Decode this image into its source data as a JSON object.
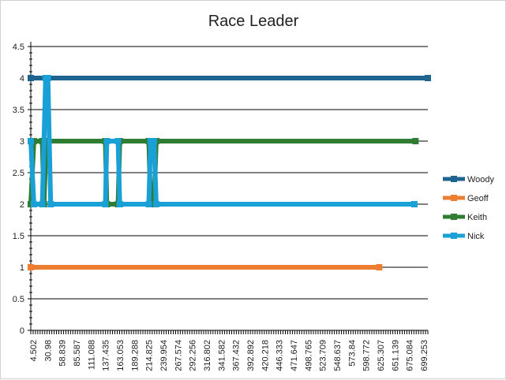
{
  "chart_data": {
    "type": "line",
    "title": "Race Leader",
    "xlabel": "",
    "ylabel": "",
    "ylim": [
      0,
      4.5
    ],
    "y_ticks": [
      "0",
      "0.5",
      "1",
      "1.5",
      "2",
      "2.5",
      "3",
      "3.5",
      "4",
      "4.5"
    ],
    "x_range": [
      4.502,
      712
    ],
    "x_tick_labels": [
      "4.502",
      "30.98",
      "58.839",
      "85.587",
      "111.088",
      "137.435",
      "163.053",
      "189.288",
      "214.825",
      "239.954",
      "267.574",
      "292.256",
      "316.802",
      "341.582",
      "367.432",
      "392.892",
      "420.218",
      "446.333",
      "471.647",
      "498.765",
      "523.709",
      "548.637",
      "573.84",
      "598.772",
      "625.307",
      "651.139",
      "675.084",
      "699.253"
    ],
    "grid": "horizontal",
    "legend_position": "right",
    "series": [
      {
        "name": "Woody",
        "color": "#1f6491",
        "x": [
          4.502,
          712
        ],
        "y": [
          4,
          4
        ]
      },
      {
        "name": "Geoff",
        "color": "#ed7d31",
        "x": [
          4.502,
          625.307
        ],
        "y": [
          1,
          1
        ]
      },
      {
        "name": "Keith",
        "color": "#2e7d32",
        "x": [
          4.502,
          10,
          25,
          28,
          32,
          137.435,
          140,
          160,
          163.053,
          214.825,
          218,
          224,
          228,
          690
        ],
        "y": [
          2,
          3,
          3,
          2,
          3,
          3,
          2,
          2,
          3,
          3,
          2,
          2,
          3,
          3
        ]
      },
      {
        "name": "Nick",
        "color": "#18a0d7",
        "x": [
          4.502,
          10,
          25,
          30.98,
          35,
          40,
          137.435,
          140,
          160,
          163.053,
          214.825,
          218,
          224,
          228,
          688
        ],
        "y": [
          3,
          2,
          2,
          4,
          4,
          2,
          2,
          3,
          3,
          2,
          2,
          3,
          3,
          2,
          2
        ]
      }
    ]
  }
}
